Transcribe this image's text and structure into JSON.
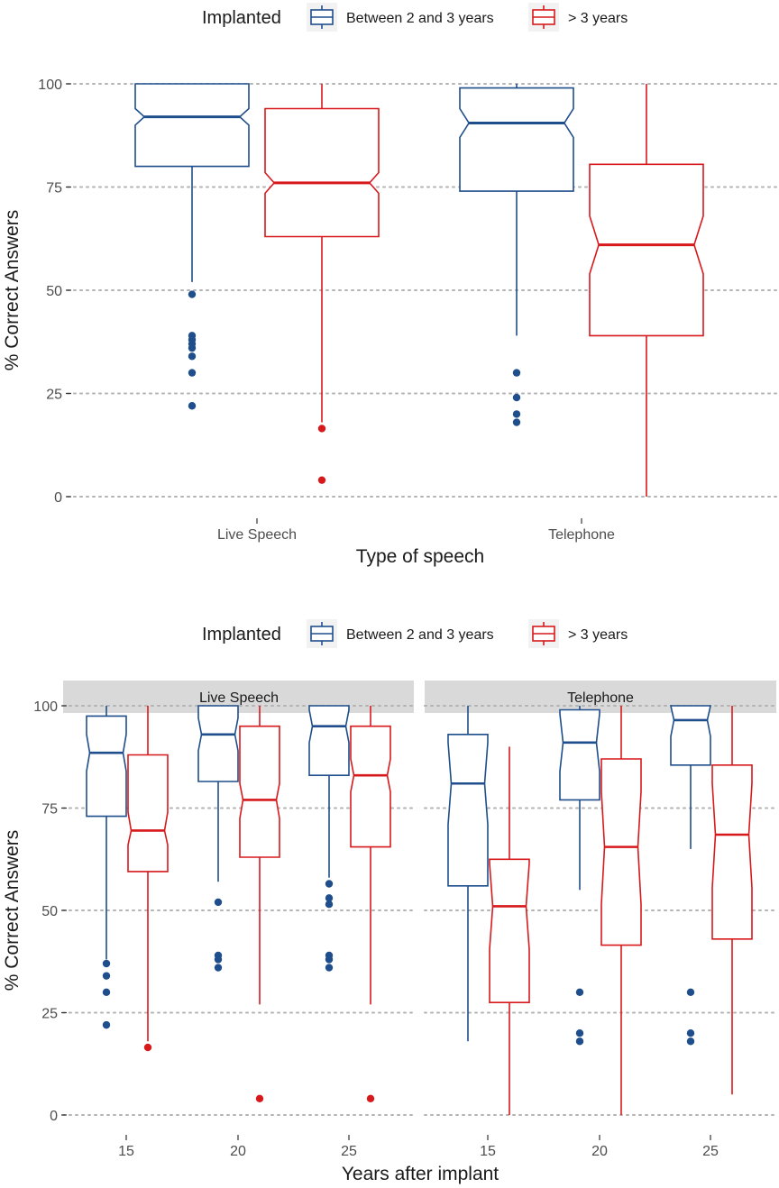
{
  "chart_data": [
    {
      "type": "boxplot",
      "legend": {
        "title": "Implanted",
        "position": "top",
        "entries": [
          {
            "name": "Between 2 and 3 years",
            "color": "#1F4E8C"
          },
          {
            "name": "> 3 years",
            "color": "#D7191C"
          }
        ]
      },
      "xlabel": "Type of speech",
      "ylabel": "% Correct Answers",
      "ylim": [
        0,
        100
      ],
      "yticks": [
        0,
        25,
        50,
        75,
        100
      ],
      "grid": "horizontal dotted",
      "groups": [
        {
          "category": "Live Speech",
          "boxes": [
            {
              "series": "Between 2 and 3 years",
              "min": 52,
              "q1": 80,
              "median": 92,
              "q3": 100,
              "max": 100,
              "notch": [
                90,
                94
              ],
              "outliers": [
                49,
                39,
                38,
                37,
                36,
                34,
                30,
                22
              ]
            },
            {
              "series": "> 3 years",
              "min": 18,
              "q1": 63,
              "median": 76,
              "q3": 94,
              "max": 100,
              "notch": [
                73.5,
                78.5
              ],
              "outliers": [
                16.5,
                4
              ]
            }
          ]
        },
        {
          "category": "Telephone",
          "boxes": [
            {
              "series": "Between 2 and 3 years",
              "min": 39,
              "q1": 74,
              "median": 90.5,
              "q3": 99,
              "max": 100,
              "notch": [
                87,
                94
              ],
              "outliers": [
                30,
                24,
                20,
                18
              ]
            },
            {
              "series": "> 3 years",
              "min": 0,
              "q1": 39,
              "median": 61,
              "q3": 80.5,
              "max": 100,
              "notch": [
                54,
                68
              ],
              "outliers": []
            }
          ]
        }
      ]
    },
    {
      "type": "boxplot",
      "legend": {
        "title": "Implanted",
        "position": "top",
        "entries": [
          {
            "name": "Between 2 and 3 years",
            "color": "#1F4E8C"
          },
          {
            "name": "> 3 years",
            "color": "#D7191C"
          }
        ]
      },
      "xlabel": "Years after implant",
      "ylabel": "% Correct Answers",
      "ylim": [
        0,
        100
      ],
      "yticks": [
        0,
        25,
        50,
        75,
        100
      ],
      "grid": "horizontal dotted",
      "facets": [
        {
          "label": "Live Speech",
          "groups": [
            {
              "category": "15",
              "boxes": [
                {
                  "series": "Between 2 and 3 years",
                  "min": 38,
                  "q1": 73,
                  "median": 88.5,
                  "q3": 97.5,
                  "max": 100,
                  "notch": [
                    84,
                    93
                  ],
                  "outliers": [
                    37,
                    34,
                    30,
                    22
                  ]
                },
                {
                  "series": "> 3 years",
                  "min": 18,
                  "q1": 59.5,
                  "median": 69.5,
                  "q3": 88,
                  "max": 100,
                  "notch": [
                    66,
                    74
                  ],
                  "outliers": [
                    16.5
                  ]
                }
              ]
            },
            {
              "category": "20",
              "boxes": [
                {
                  "series": "Between 2 and 3 years",
                  "min": 57,
                  "q1": 81.5,
                  "median": 93,
                  "q3": 100,
                  "max": 100,
                  "notch": [
                    89,
                    97
                  ],
                  "outliers": [
                    52,
                    39,
                    38,
                    36
                  ]
                },
                {
                  "series": "> 3 years",
                  "min": 27,
                  "q1": 63,
                  "median": 77,
                  "q3": 95,
                  "max": 100,
                  "notch": [
                    72.5,
                    81
                  ],
                  "outliers": [
                    4
                  ]
                }
              ]
            },
            {
              "category": "25",
              "boxes": [
                {
                  "series": "Between 2 and 3 years",
                  "min": 58,
                  "q1": 83,
                  "median": 95,
                  "q3": 100,
                  "max": 100,
                  "notch": [
                    91,
                    99
                  ],
                  "outliers": [
                    56.5,
                    53,
                    51.5,
                    39,
                    38,
                    36
                  ]
                },
                {
                  "series": "> 3 years",
                  "min": 27,
                  "q1": 65.5,
                  "median": 83,
                  "q3": 95,
                  "max": 100,
                  "notch": [
                    79,
                    87
                  ],
                  "outliers": [
                    4
                  ]
                }
              ]
            }
          ]
        },
        {
          "label": "Telephone",
          "groups": [
            {
              "category": "15",
              "boxes": [
                {
                  "series": "Between 2 and 3 years",
                  "min": 18,
                  "q1": 56,
                  "median": 81,
                  "q3": 93,
                  "max": 100,
                  "notch": [
                    71,
                    91
                  ],
                  "outliers": []
                },
                {
                  "series": "> 3 years",
                  "min": 0,
                  "q1": 27.5,
                  "median": 51,
                  "q3": 62.5,
                  "max": 90,
                  "notch": [
                    40.5,
                    61.5
                  ],
                  "outliers": []
                }
              ]
            },
            {
              "category": "20",
              "boxes": [
                {
                  "series": "Between 2 and 3 years",
                  "min": 55,
                  "q1": 77,
                  "median": 91,
                  "q3": 99,
                  "max": 100,
                  "notch": [
                    84,
                    98
                  ],
                  "outliers": [
                    30,
                    20,
                    18
                  ]
                },
                {
                  "series": "> 3 years",
                  "min": 0,
                  "q1": 41.5,
                  "median": 65.5,
                  "q3": 87,
                  "max": 100,
                  "notch": [
                    51.5,
                    79
                  ],
                  "outliers": []
                }
              ]
            },
            {
              "category": "25",
              "boxes": [
                {
                  "series": "Between 2 and 3 years",
                  "min": 65,
                  "q1": 85.5,
                  "median": 96.5,
                  "q3": 100,
                  "max": 100,
                  "notch": [
                    92.5,
                    100
                  ],
                  "outliers": [
                    30,
                    20,
                    18
                  ]
                },
                {
                  "series": "> 3 years",
                  "min": 5,
                  "q1": 43,
                  "median": 68.5,
                  "q3": 85.5,
                  "max": 100,
                  "notch": [
                    55.5,
                    81
                  ],
                  "outliers": []
                }
              ]
            }
          ]
        }
      ]
    }
  ]
}
